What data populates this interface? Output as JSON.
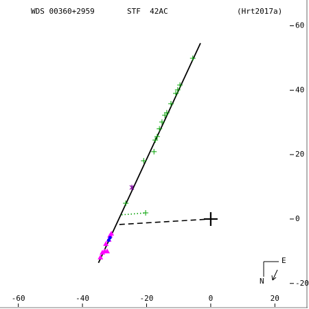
{
  "chart_data": {
    "type": "scatter",
    "title": "WDS 00360+2959",
    "subtitle": "STF  42AC",
    "reference": "(Hrt2017a)",
    "compass": {
      "north": "N",
      "east": "E"
    },
    "xlim": [
      -64,
      30
    ],
    "ylim": [
      -27.3,
      66.3
    ],
    "xticks": [
      -60,
      -40,
      -20,
      0,
      20
    ],
    "yticks": [
      60,
      40,
      20,
      0,
      -20
    ],
    "series": [
      {
        "color": "#000000",
        "line": "solid",
        "x": [
          -35,
          -3.2
        ],
        "values": [
          -13.6,
          54.6
        ]
      },
      {
        "color": "#000000",
        "line": "dashed",
        "x": [
          -28.5,
          0
        ],
        "values": [
          -1.7,
          0
        ]
      },
      {
        "color": "#00a000",
        "line": "dotted",
        "x": [
          -27.8,
          -20.3
        ],
        "values": [
          1.3,
          1.9
        ]
      },
      {
        "color": "#00a000",
        "marker": "plus",
        "x": [
          -26.5,
          -20.9,
          -17.7,
          -17.3,
          -16.7,
          -16,
          -15.2,
          -14.3,
          -13.7,
          -12.4,
          -10.9,
          -10.3,
          -9.6,
          -5.6,
          -20.3
        ],
        "values": [
          4.9,
          18.1,
          20.9,
          24.5,
          25.6,
          28,
          30.1,
          32.2,
          33,
          35.8,
          39,
          40.1,
          41.6,
          49.9,
          1.9
        ]
      },
      {
        "color": "#ff00ff",
        "marker": "triangle",
        "x": [
          -31.4,
          -31.8,
          -32.7,
          -33.1,
          -33.8,
          -32.3,
          -34.4,
          -31
        ],
        "values": [
          -5.1,
          -6.4,
          -7.7,
          -10,
          -10.4,
          -10,
          -11.9,
          -4.5
        ]
      },
      {
        "color": "#0000ff",
        "marker": "circle",
        "x": [
          -31.8,
          -31.4
        ],
        "values": [
          -6.6,
          -5.8
        ]
      },
      {
        "color": "#8000a0",
        "marker": "star",
        "x": [
          -24.6
        ],
        "values": [
          9.8
        ]
      },
      {
        "color": "#000000",
        "marker": "bigplus",
        "x": [
          0
        ],
        "values": [
          0
        ]
      }
    ]
  }
}
